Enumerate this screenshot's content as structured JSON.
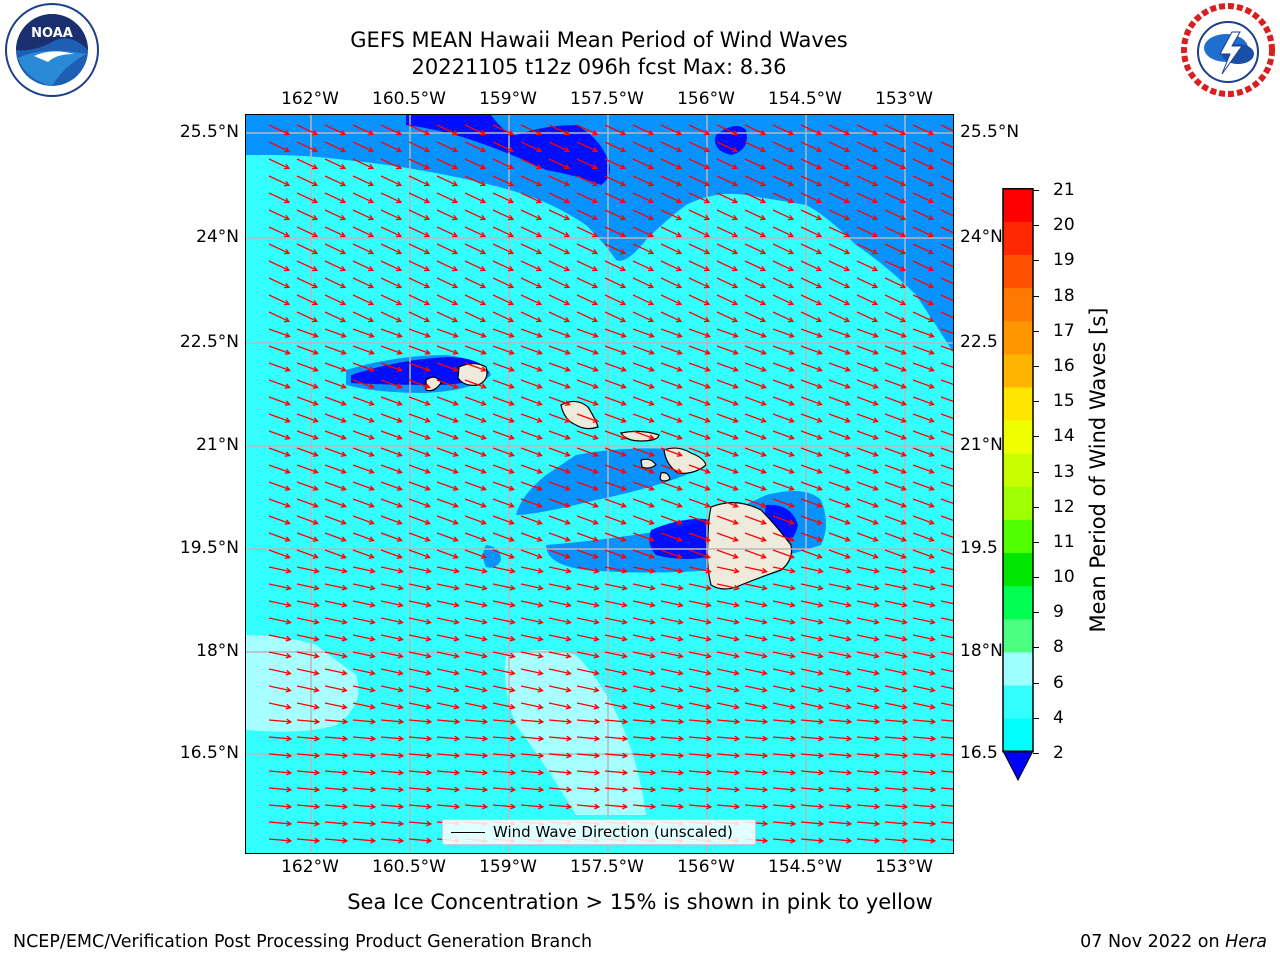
{
  "title": {
    "line1": "GEFS MEAN Hawaii Mean Period of Wind Waves",
    "line2": "20221105 t12z 096h fcst   Max: 8.36"
  },
  "map": {
    "lon_ticks": [
      "162°W",
      "160.5°W",
      "159°W",
      "157.5°W",
      "156°W",
      "154.5°W",
      "153°W"
    ],
    "lat_ticks": [
      "25.5°N",
      "24°N",
      "22.5°N",
      "21°N",
      "19.5°N",
      "18°N",
      "16.5°N"
    ],
    "lat_ticks_right": [
      "25.5°N",
      "24°N",
      "22.5",
      "21°N",
      "19.5",
      "18°N",
      "16.5"
    ],
    "legend_label": "Wind Wave Direction (unscaled)",
    "ocean_color": "#33ffff",
    "arrow_color": "#ff0000",
    "land_color": "#efebdc"
  },
  "colorbar": {
    "title": "Mean Period of Wind Waves [s]",
    "labels": [
      "21",
      "20",
      "19",
      "18",
      "17",
      "16",
      "15",
      "14",
      "13",
      "12",
      "11",
      "10",
      "9",
      "8",
      "6",
      "4",
      "2"
    ],
    "colors": [
      "#ff0000",
      "#ff2800",
      "#ff5000",
      "#ff7800",
      "#ff9600",
      "#ffb400",
      "#ffe600",
      "#f0ff00",
      "#c8ff00",
      "#a0ff00",
      "#50ff00",
      "#00e600",
      "#00ff50",
      "#4dff80",
      "#a0ffff",
      "#33ffff",
      "#00ffff",
      "#0080ff"
    ],
    "under_color": "#0000ff"
  },
  "note": "Sea Ice Concentration > 15% is shown in pink to yellow",
  "footer": {
    "left": "NCEP/EMC/Verification Post Processing Product Generation Branch",
    "right_date": "07 Nov 2022 on ",
    "right_machine": "Hera"
  }
}
